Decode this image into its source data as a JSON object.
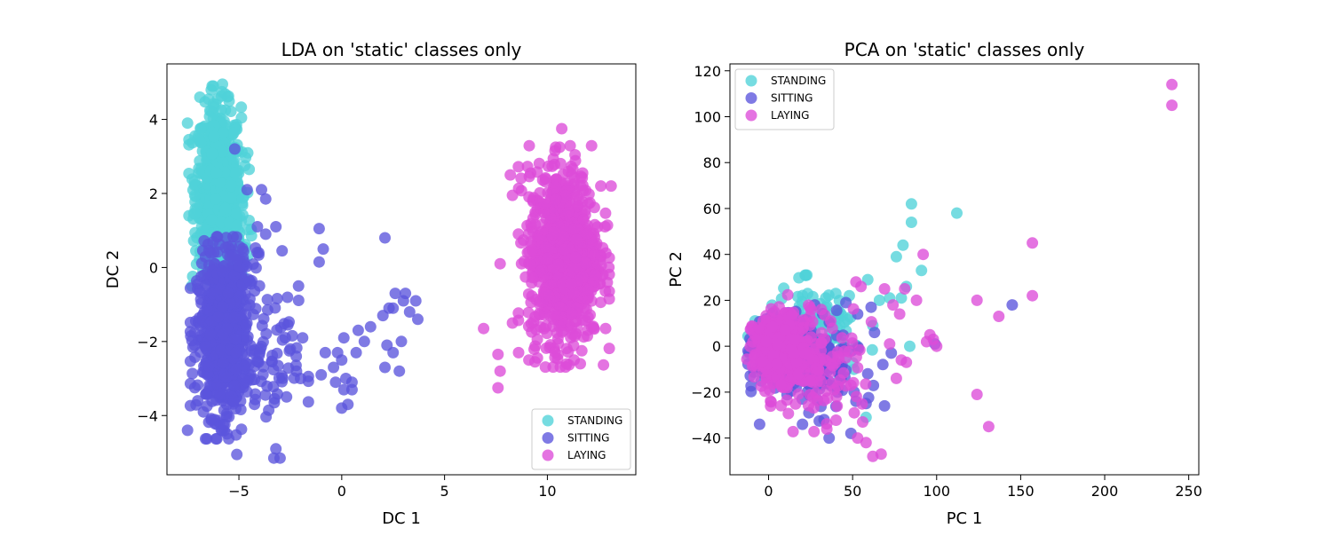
{
  "chart_data": [
    {
      "type": "scatter",
      "title": "LDA on 'static' classes only",
      "xlabel": "DC 1",
      "ylabel": "DC 2",
      "xlim": [
        -8.5,
        14.3
      ],
      "ylim": [
        -5.6,
        5.5
      ],
      "xticks": [
        -5,
        0,
        5,
        10
      ],
      "yticks": [
        -4,
        -2,
        0,
        2,
        4
      ],
      "legend_position": "lower-right",
      "grid": false,
      "series": [
        {
          "name": "STANDING",
          "color": "#4fd2d8",
          "clusters": [
            {
              "cx": -6.0,
              "cy": 2.3,
              "sx": 0.55,
              "sy": 1.0,
              "n": 650
            },
            {
              "cx": -5.7,
              "cy": 0.8,
              "sx": 0.55,
              "sy": 0.6,
              "n": 120
            }
          ],
          "points": [
            [
              -6.3,
              4.9
            ],
            [
              -5.8,
              4.95
            ],
            [
              -7.5,
              3.9
            ],
            [
              -4.5,
              2.65
            ],
            [
              -7.2,
              0.72
            ],
            [
              -7.3,
              -0.5
            ],
            [
              -4.9,
              2.1
            ],
            [
              -6.9,
              4.6
            ]
          ]
        },
        {
          "name": "SITTING",
          "color": "#5b55dc",
          "clusters": [
            {
              "cx": -5.8,
              "cy": -1.9,
              "sx": 0.6,
              "sy": 1.05,
              "n": 650
            },
            {
              "cx": -5.3,
              "cy": -0.2,
              "sx": 0.6,
              "sy": 0.5,
              "n": 80
            },
            {
              "cx": -3.7,
              "cy": -2.7,
              "sx": 0.8,
              "sy": 0.9,
              "n": 70
            }
          ],
          "points": [
            [
              -5.2,
              3.2
            ],
            [
              -4.6,
              2.1
            ],
            [
              -3.9,
              2.1
            ],
            [
              -3.7,
              1.85
            ],
            [
              -4.1,
              1.1
            ],
            [
              -3.2,
              1.1
            ],
            [
              -3.7,
              0.9
            ],
            [
              -2.9,
              0.45
            ],
            [
              -2.1,
              -0.5
            ],
            [
              -0.9,
              0.5
            ],
            [
              -1.1,
              1.05
            ],
            [
              -1.1,
              0.15
            ],
            [
              2.1,
              0.8
            ],
            [
              -1.9,
              -1.9
            ],
            [
              -2.5,
              -2.2
            ],
            [
              -2.2,
              -2.8
            ],
            [
              -2.0,
              -3.0
            ],
            [
              -1.0,
              -2.9
            ],
            [
              -0.8,
              -2.3
            ],
            [
              -0.2,
              -2.3
            ],
            [
              0.0,
              -2.5
            ],
            [
              0.2,
              -3.0
            ],
            [
              -0.4,
              -2.7
            ],
            [
              0.5,
              -3.1
            ],
            [
              0.1,
              -3.3
            ],
            [
              0.5,
              -3.3
            ],
            [
              0.0,
              -3.8
            ],
            [
              0.3,
              -3.7
            ],
            [
              -0.3,
              -3.1
            ],
            [
              0.7,
              -2.3
            ],
            [
              1.1,
              -2.0
            ],
            [
              1.4,
              -1.6
            ],
            [
              0.8,
              -1.7
            ],
            [
              0.1,
              -1.9
            ],
            [
              2.2,
              -2.1
            ],
            [
              2.5,
              -2.3
            ],
            [
              2.1,
              -2.7
            ],
            [
              2.8,
              -2.8
            ],
            [
              2.9,
              -2.0
            ],
            [
              2.3,
              -1.1
            ],
            [
              2.0,
              -1.3
            ],
            [
              2.5,
              -1.1
            ],
            [
              2.6,
              -0.7
            ],
            [
              3.1,
              -0.7
            ],
            [
              3.0,
              -0.9
            ],
            [
              3.3,
              -1.2
            ],
            [
              3.6,
              -0.9
            ],
            [
              3.7,
              -1.4
            ],
            [
              -3.2,
              -4.9
            ],
            [
              -3.0,
              -5.15
            ],
            [
              -3.3,
              -5.15
            ],
            [
              -7.5,
              -4.4
            ],
            [
              -7.0,
              -3.6
            ],
            [
              -5.1,
              -5.05
            ]
          ]
        },
        {
          "name": "LAYING",
          "color": "#dd4cd9",
          "clusters": [
            {
              "cx": 10.8,
              "cy": 0.3,
              "sx": 0.85,
              "sy": 1.15,
              "n": 950
            }
          ],
          "points": [
            [
              10.7,
              3.75
            ],
            [
              10.4,
              3.25
            ],
            [
              10.6,
              3.25
            ],
            [
              8.2,
              2.5
            ],
            [
              8.3,
              1.95
            ],
            [
              7.7,
              0.1
            ],
            [
              7.6,
              -2.35
            ],
            [
              7.7,
              -2.8
            ],
            [
              7.6,
              -3.25
            ],
            [
              6.9,
              -1.65
            ],
            [
              8.3,
              -1.5
            ],
            [
              8.6,
              -2.3
            ],
            [
              9.1,
              -2.5
            ],
            [
              9.4,
              -2.55
            ],
            [
              12.3,
              -0.2
            ],
            [
              12.6,
              2.2
            ],
            [
              13.1,
              2.2
            ],
            [
              12.8,
              1.1
            ],
            [
              12.6,
              0.3
            ],
            [
              11.6,
              -2.6
            ],
            [
              11.3,
              -2.5
            ]
          ]
        }
      ]
    },
    {
      "type": "scatter",
      "title": "PCA on 'static' classes only",
      "xlabel": "PC 1",
      "ylabel": "PC 2",
      "xlim": [
        -23,
        256
      ],
      "ylim": [
        -56,
        123
      ],
      "xticks": [
        0,
        50,
        100,
        150,
        200,
        250
      ],
      "yticks": [
        -40,
        -20,
        0,
        20,
        40,
        60,
        80,
        100,
        120
      ],
      "legend_position": "upper-left",
      "grid": false,
      "series": [
        {
          "name": "STANDING",
          "color": "#4fd2d8",
          "clusters": [
            {
              "cx": 6,
              "cy": 0,
              "sx": 7,
              "sy": 5,
              "n": 300
            },
            {
              "cx": 28,
              "cy": 5,
              "sx": 15,
              "sy": 10,
              "n": 120
            }
          ],
          "points": [
            [
              85,
              62
            ],
            [
              85,
              54
            ],
            [
              112,
              58
            ],
            [
              80,
              44
            ],
            [
              76,
              39
            ],
            [
              91,
              33
            ],
            [
              82,
              26
            ],
            [
              79,
              21
            ],
            [
              84,
              0
            ],
            [
              59,
              29
            ],
            [
              72,
              21
            ],
            [
              66,
              20
            ],
            [
              48,
              22
            ],
            [
              40,
              23
            ],
            [
              34,
              21
            ],
            [
              58,
              -31
            ]
          ]
        },
        {
          "name": "SITTING",
          "color": "#5b55dc",
          "clusters": [
            {
              "cx": 6,
              "cy": -1,
              "sx": 7,
              "sy": 6,
              "n": 320
            },
            {
              "cx": 26,
              "cy": -8,
              "sx": 14,
              "sy": 10,
              "n": 150
            }
          ],
          "points": [
            [
              145,
              18
            ],
            [
              99,
              1
            ],
            [
              69,
              -26
            ],
            [
              58,
              -25
            ],
            [
              49,
              -38
            ],
            [
              36,
              -40
            ],
            [
              61,
              17
            ],
            [
              53,
              14
            ],
            [
              46,
              19
            ],
            [
              63,
              6
            ],
            [
              73,
              -3
            ],
            [
              68,
              -8
            ],
            [
              59,
              -12
            ],
            [
              52,
              -24
            ],
            [
              41,
              -20
            ],
            [
              33,
              -32
            ],
            [
              24,
              -29
            ],
            [
              20,
              -23
            ]
          ]
        },
        {
          "name": "LAYING",
          "color": "#dd4cd9",
          "clusters": [
            {
              "cx": 5,
              "cy": -1,
              "sx": 7,
              "sy": 7,
              "n": 330
            },
            {
              "cx": 24,
              "cy": -6,
              "sx": 15,
              "sy": 12,
              "n": 170
            }
          ],
          "points": [
            [
              240,
              114
            ],
            [
              240,
              105
            ],
            [
              157,
              45
            ],
            [
              157,
              22
            ],
            [
              124,
              20
            ],
            [
              137,
              13
            ],
            [
              124,
              -21
            ],
            [
              131,
              -35
            ],
            [
              92,
              40
            ],
            [
              88,
              20
            ],
            [
              81,
              25
            ],
            [
              74,
              18
            ],
            [
              78,
              14
            ],
            [
              96,
              5
            ],
            [
              98,
              3
            ],
            [
              100,
              0
            ],
            [
              94,
              2
            ],
            [
              79,
              -6
            ],
            [
              82,
              -7
            ],
            [
              76,
              -14
            ],
            [
              72,
              1
            ],
            [
              67,
              -47
            ],
            [
              62,
              -48
            ],
            [
              58,
              -42
            ],
            [
              53,
              -40
            ],
            [
              56,
              -33
            ],
            [
              51,
              -29
            ],
            [
              49,
              -17
            ],
            [
              52,
              28
            ],
            [
              55,
              26
            ],
            [
              69,
              25
            ]
          ]
        }
      ]
    }
  ]
}
